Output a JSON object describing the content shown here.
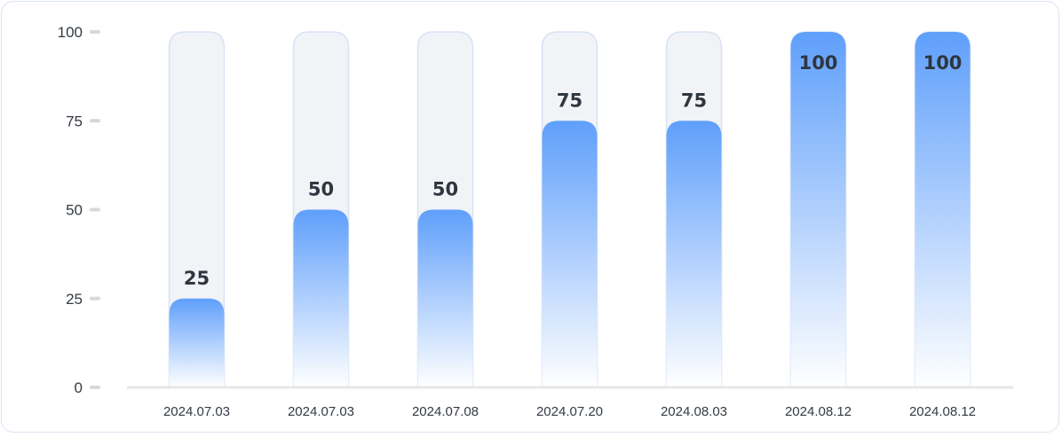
{
  "chart_data": {
    "type": "bar",
    "categories": [
      "2024.07.03",
      "2024.07.03",
      "2024.07.08",
      "2024.07.20",
      "2024.08.03",
      "2024.08.12",
      "2024.08.12"
    ],
    "values": [
      25,
      50,
      50,
      75,
      75,
      100,
      100
    ],
    "ylim": [
      0,
      100
    ],
    "yticks": [
      0,
      25,
      50,
      75,
      100
    ],
    "title": "",
    "xlabel": "",
    "ylabel": "",
    "grid": false,
    "colors": {
      "bar_top": "#5f9ffb",
      "bar_bottom": "#ffffff",
      "track_fill": "#f1f3f7",
      "track_stroke": "#d8e3f5",
      "axis": "#e6e6e6"
    }
  }
}
